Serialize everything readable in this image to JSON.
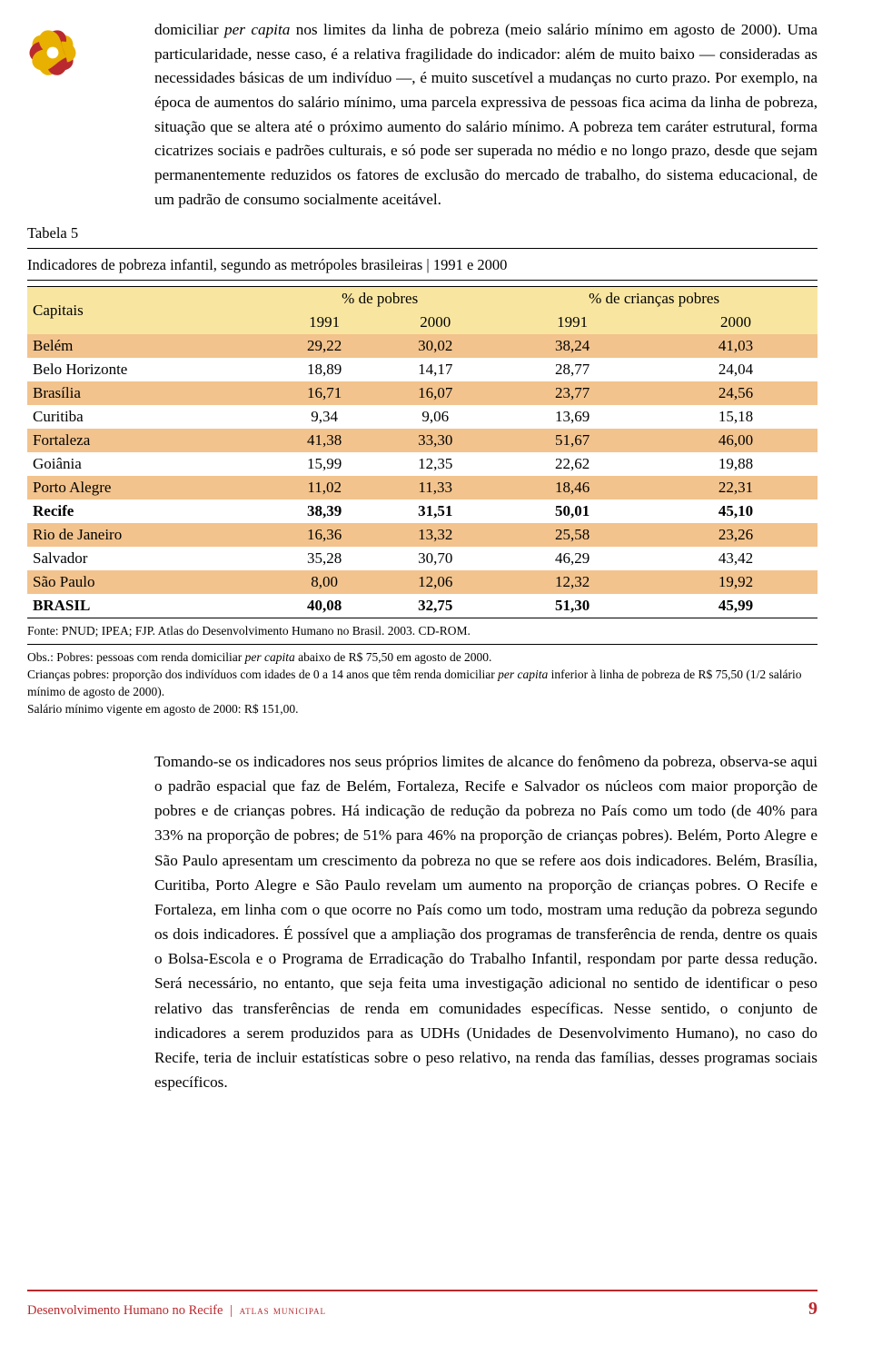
{
  "paragraph_top": "domiciliar <em>per capita</em> nos limites da linha de pobreza (meio salário mínimo em agosto de 2000). Uma particularidade, nesse caso, é a relativa fragilidade do indicador: além de muito baixo — consideradas as necessidades básicas de um indivíduo —, é muito suscetível a mudanças no curto prazo. Por exemplo, na época de aumentos do salário mínimo, uma parcela expressiva de pessoas fica acima da linha de pobreza, situação que se altera até o próximo aumento do salário mínimo. A pobreza tem caráter estrutural, forma cicatrizes sociais e padrões culturais, e só pode ser superada no médio e no longo prazo, desde que sejam permanentemente reduzidos os fatores de exclusão do mercado de trabalho, do sistema educacional, de um padrão de consumo socialmente aceitável.",
  "table": {
    "label": "Tabela 5",
    "caption": "Indicadores de pobreza infantil, segundo as metrópoles brasileiras | 1991 e 2000",
    "col_capitais": "Capitais",
    "group1": "% de pobres",
    "group2": "% de crianças pobres",
    "years": [
      "1991",
      "2000",
      "1991",
      "2000"
    ],
    "rows": [
      {
        "name": "Belém",
        "v": [
          "29,22",
          "30,02",
          "38,24",
          "41,03"
        ],
        "stripe": "orange",
        "bold": false
      },
      {
        "name": "Belo Horizonte",
        "v": [
          "18,89",
          "14,17",
          "28,77",
          "24,04"
        ],
        "stripe": "white",
        "bold": false
      },
      {
        "name": "Brasília",
        "v": [
          "16,71",
          "16,07",
          "23,77",
          "24,56"
        ],
        "stripe": "orange",
        "bold": false
      },
      {
        "name": "Curitiba",
        "v": [
          "9,34",
          "9,06",
          "13,69",
          "15,18"
        ],
        "stripe": "white",
        "bold": false
      },
      {
        "name": "Fortaleza",
        "v": [
          "41,38",
          "33,30",
          "51,67",
          "46,00"
        ],
        "stripe": "orange",
        "bold": false
      },
      {
        "name": "Goiânia",
        "v": [
          "15,99",
          "12,35",
          "22,62",
          "19,88"
        ],
        "stripe": "white",
        "bold": false
      },
      {
        "name": "Porto Alegre",
        "v": [
          "11,02",
          "11,33",
          "18,46",
          "22,31"
        ],
        "stripe": "orange",
        "bold": false
      },
      {
        "name": "Recife",
        "v": [
          "38,39",
          "31,51",
          "50,01",
          "45,10"
        ],
        "stripe": "white",
        "bold": true
      },
      {
        "name": "Rio de Janeiro",
        "v": [
          "16,36",
          "13,32",
          "25,58",
          "23,26"
        ],
        "stripe": "orange",
        "bold": false
      },
      {
        "name": "Salvador",
        "v": [
          "35,28",
          "30,70",
          "46,29",
          "43,42"
        ],
        "stripe": "white",
        "bold": false
      },
      {
        "name": "São Paulo",
        "v": [
          "8,00",
          "12,06",
          "12,32",
          "19,92"
        ],
        "stripe": "orange",
        "bold": false
      },
      {
        "name": "BRASIL",
        "v": [
          "40,08",
          "32,75",
          "51,30",
          "45,99"
        ],
        "stripe": "white",
        "bold": true
      }
    ],
    "fonte": "Fonte: PNUD; IPEA; FJP. Atlas do Desenvolvimento Humano no Brasil. 2003. CD-ROM.",
    "obs": "Obs.: Pobres: pessoas com renda domiciliar <em>per capita</em> abaixo de R$ 75,50 em agosto de 2000.<br>Crianças pobres: proporção dos indivíduos com idades de 0 a 14 anos que têm renda domiciliar <em>per capita</em> inferior à linha de pobreza de R$ 75,50 (1/2 salário mínimo de agosto de 2000).<br>Salário mínimo vigente em agosto de 2000: R$ 151,00."
  },
  "paragraph_bottom": "Tomando-se os indicadores nos seus próprios limites de alcance do fenômeno da pobreza, observa-se aqui o padrão espacial que faz de Belém, Fortaleza, Recife e Salvador os núcleos com maior proporção de pobres e de crianças pobres. Há indicação de redução da pobreza no País como um todo (de 40% para 33% na proporção de pobres; de 51% para 46% na proporção de crianças pobres). Belém, Porto Alegre e São Paulo apresentam um crescimento da pobreza no que se refere aos dois indicadores. Belém, Brasília, Curitiba, Porto Alegre e São Paulo revelam um aumento na proporção de crianças pobres. O Recife e Fortaleza, em linha com o que ocorre no País como um todo, mostram uma redução da pobreza segundo os dois indicadores. É possível que a ampliação dos programas de transferência de renda, dentre os quais o Bolsa-Escola e o Programa de Erradicação do Trabalho Infantil, respondam por parte dessa redução. Será necessário, no entanto, que seja feita uma investigação adicional no sentido de identificar o peso relativo das transferências de renda em comunidades específicas. Nesse sentido, o conjunto de indicadores a serem produzidos para as UDHs (Unidades de Desenvolvimento Humano), no caso do Recife, teria de incluir estatísticas sobre o peso relativo, na renda das famílias, desses programas sociais específicos.",
  "footer": {
    "left_title": "Desenvolvimento Humano no Recife",
    "left_sub": "atlas municipal",
    "page": "9"
  },
  "colors": {
    "accent_red": "#b9292e",
    "header_yellow": "#f8e6a0",
    "stripe_orange": "#f2c38d"
  }
}
